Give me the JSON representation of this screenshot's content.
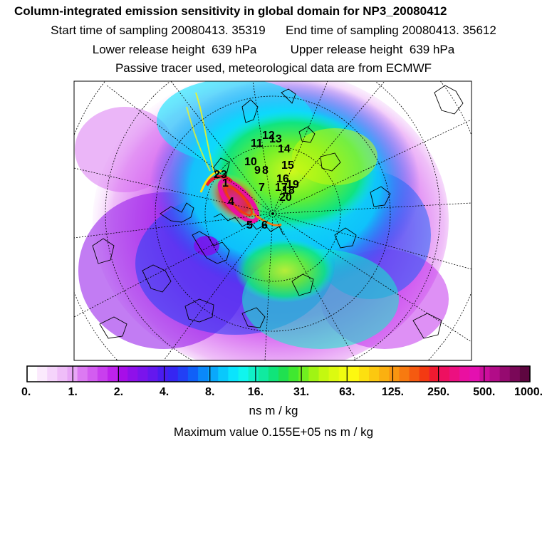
{
  "header": {
    "title": "Column-integrated emission sensitivity in global domain for NP3_20080412",
    "line2": "Start time of sampling 20080413. 35319      End time of sampling 20080413. 35612",
    "line3": "Lower release height  639 hPa          Upper release height  639 hPa",
    "line4": "Passive tracer used, meteorological data are from ECMWF"
  },
  "colorbar": {
    "tick_labels": [
      "0.",
      "1.",
      "2.",
      "4.",
      "8.",
      "16.",
      "31.",
      "63.",
      "125.",
      "250.",
      "500.",
      "1000."
    ],
    "unit": "ns m / kg",
    "colors": [
      "#ffffff",
      "#fbeafd",
      "#f5d4fb",
      "#efbdf8",
      "#e8a6f6",
      "#dc7af2",
      "#d35df0",
      "#c93fee",
      "#be22ec",
      "#a70ee8",
      "#8f10ea",
      "#7a14ec",
      "#6418ee",
      "#4a1cf0",
      "#3626f2",
      "#2240f5",
      "#1060f8",
      "#0a88fa",
      "#0aa8fb",
      "#0ac8fc",
      "#0ae4fd",
      "#10f5ee",
      "#10f0c8",
      "#10eaa0",
      "#10e47a",
      "#20e050",
      "#40e830",
      "#70f020",
      "#a0f414",
      "#c4f810",
      "#dcfa10",
      "#f0fc10",
      "#fdf810",
      "#fde010",
      "#fcc810",
      "#fbb010",
      "#f99510",
      "#f77a10",
      "#f55a10",
      "#f33a12",
      "#f01a30",
      "#ee1060",
      "#ec1080",
      "#ea10a0",
      "#e410b0",
      "#cc0e9c",
      "#b20c88",
      "#960a70",
      "#7a0858",
      "#5e0640"
    ]
  },
  "max_value": "Maximum value  0.155E+05 ns m / kg",
  "trajectory_labels": [
    "1",
    "2",
    "3",
    "4",
    "5",
    "6",
    "7",
    "8",
    "9",
    "10",
    "11",
    "12",
    "13",
    "14",
    "15",
    "16",
    "17",
    "18",
    "19",
    "20"
  ]
}
